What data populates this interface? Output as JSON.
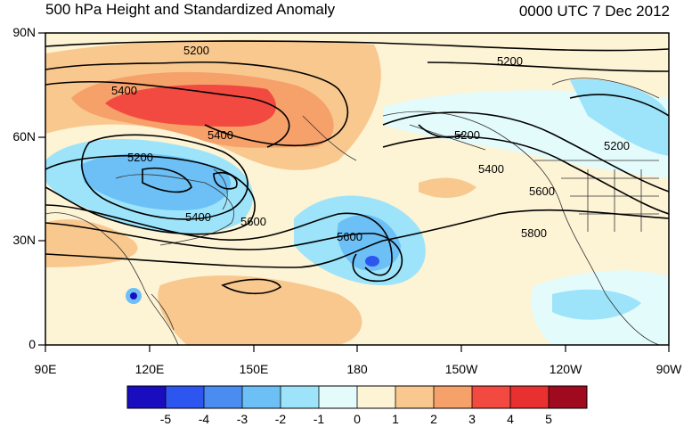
{
  "header": {
    "title": "500 hPa Height and Standardized Anomaly",
    "datetime": "0000 UTC 7 Dec 2012"
  },
  "axes": {
    "lat_labels": [
      "90N",
      "60N",
      "30N",
      "0"
    ],
    "lon_labels": [
      "90E",
      "120E",
      "150E",
      "180",
      "150W",
      "120W",
      "90W"
    ]
  },
  "contour_labels": [
    "5200",
    "5200",
    "5400",
    "5200",
    "5200",
    "5200",
    "5400",
    "5400",
    "5400",
    "5600",
    "5600",
    "5600",
    "5800"
  ],
  "colorbar": {
    "labels": [
      "-5",
      "-4",
      "-3",
      "-2",
      "-1",
      "0",
      "1",
      "2",
      "3",
      "4",
      "5"
    ],
    "colors": [
      "#1a0dbf",
      "#2d55f0",
      "#4a8cf0",
      "#6cc0f5",
      "#9de4fa",
      "#e4fbfc",
      "#fdf3d5",
      "#f8c88e",
      "#f6a06a",
      "#f24a40",
      "#e83030",
      "#a00a1e"
    ]
  }
}
